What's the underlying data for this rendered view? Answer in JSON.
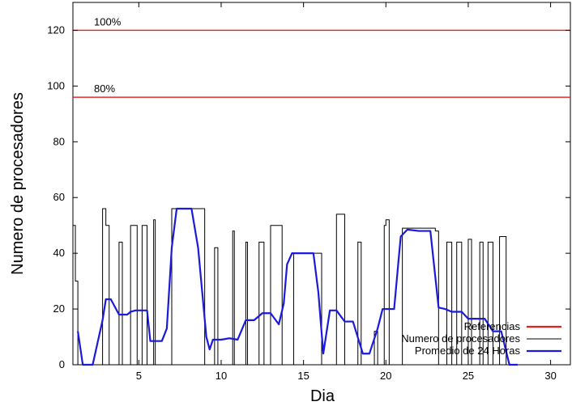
{
  "chart_data": {
    "type": "line",
    "xlabel": "Dia",
    "ylabel": "Numero de procesadores",
    "xlim": [
      1,
      31.2
    ],
    "ylim": [
      0,
      130
    ],
    "xticks": [
      5,
      10,
      15,
      20,
      25,
      30
    ],
    "yticks": [
      0,
      20,
      40,
      60,
      80,
      100,
      120
    ],
    "grid": false,
    "legend_position": "bottom-right",
    "references": [
      {
        "value": 120,
        "label": "100%"
      },
      {
        "value": 96,
        "label": "80%"
      }
    ],
    "series": [
      {
        "name": "Referencias",
        "color": "#e02020",
        "style": "line"
      },
      {
        "name": "Numero de procesadores",
        "color": "#000000",
        "style": "step",
        "x": [
          1.0,
          1.15,
          1.3,
          1.6,
          2.8,
          3.0,
          3.2,
          3.8,
          4.0,
          4.15,
          4.5,
          4.9,
          5.0,
          5.2,
          5.5,
          5.9,
          6.0,
          6.1,
          6.3,
          7.0,
          8.0,
          8.8,
          9.0,
          9.6,
          9.8,
          10.7,
          10.8,
          10.9,
          11.5,
          11.6,
          12.3,
          12.6,
          13.0,
          13.7,
          14.0,
          14.3,
          14.4,
          16.0,
          16.1,
          17.0,
          17.5,
          17.6,
          18.3,
          18.5,
          19.0,
          19.3,
          19.5,
          19.9,
          20.0,
          20.2,
          20.8,
          21.0,
          23.0,
          23.2,
          23.7,
          24.0,
          24.3,
          24.6,
          24.9,
          25.0,
          25.2,
          25.7,
          25.9,
          26.2,
          26.5,
          26.9,
          27.3,
          27.5,
          28.0,
          31.0
        ],
        "values": [
          50,
          30,
          0,
          0,
          56,
          50,
          0,
          44,
          0,
          0,
          50,
          0,
          0,
          50,
          0,
          52,
          0,
          0,
          0,
          56,
          56,
          56,
          0,
          42,
          0,
          48,
          0,
          0,
          44,
          0,
          44,
          0,
          50,
          0,
          0,
          0,
          40,
          40,
          0,
          54,
          0,
          0,
          44,
          0,
          0,
          12,
          0,
          50,
          52,
          0,
          0,
          49,
          48,
          0,
          44,
          0,
          44,
          0,
          0,
          45,
          0,
          44,
          0,
          44,
          0,
          46,
          0,
          0,
          0,
          0
        ]
      },
      {
        "name": "Promedio de 24 Horas",
        "color": "#1a1adc",
        "style": "line",
        "x": [
          1.3,
          1.6,
          2.2,
          2.8,
          3.0,
          3.3,
          3.8,
          4.3,
          4.5,
          4.8,
          5.5,
          5.7,
          6.4,
          6.7,
          7.0,
          7.3,
          8.2,
          8.6,
          9.1,
          9.3,
          9.5,
          10.0,
          10.5,
          11.0,
          11.5,
          12.0,
          12.5,
          13.0,
          13.5,
          13.8,
          14.0,
          14.3,
          14.6,
          15.6,
          15.9,
          16.2,
          16.6,
          17.0,
          17.5,
          18.0,
          18.6,
          19.0,
          19.5,
          19.8,
          20.0,
          20.5,
          20.9,
          21.3,
          22.0,
          22.7,
          23.2,
          23.6,
          24.0,
          24.6,
          25.0,
          26.0,
          26.5,
          27.0,
          27.5,
          28.0
        ],
        "values": [
          12,
          0,
          0,
          16,
          23.5,
          23.5,
          18,
          18,
          19,
          19.5,
          19.5,
          8.5,
          8.5,
          13,
          42,
          56,
          56,
          42,
          10,
          5.5,
          9,
          9,
          9.5,
          9,
          16,
          16,
          18.5,
          18.5,
          14.5,
          22,
          36,
          40,
          40,
          40,
          26,
          4,
          19.5,
          19.5,
          15.5,
          15.5,
          4,
          4,
          13,
          20,
          20,
          20,
          46,
          48.5,
          48,
          48,
          20.5,
          20,
          19,
          19,
          16.5,
          16.5,
          12,
          12,
          0,
          0
        ]
      }
    ]
  }
}
